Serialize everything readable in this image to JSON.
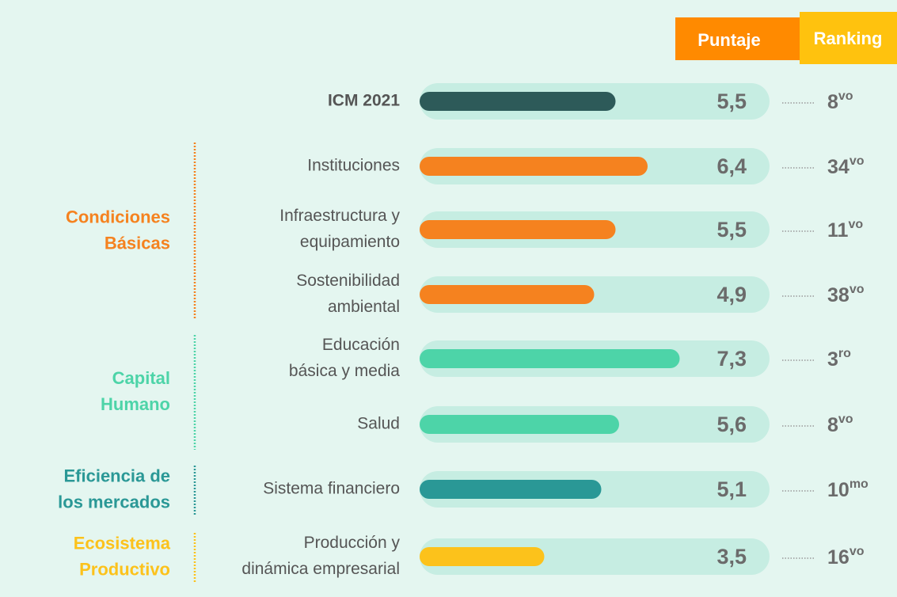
{
  "chart_data": {
    "type": "bar",
    "headers": {
      "score": "Puntaje",
      "rank": "Ranking"
    },
    "xlim": [
      0,
      10
    ],
    "total": {
      "label": [
        "ICM 2021"
      ],
      "value": 5.5,
      "value_label": "5,5",
      "rank": "8",
      "suffix": "vo",
      "color": "#2d5a59"
    },
    "groups": [
      {
        "name": [
          "Condiciones",
          "Básicas"
        ],
        "color": "#f5821f",
        "items": [
          {
            "label": [
              "Instituciones"
            ],
            "value": 6.4,
            "value_label": "6,4",
            "rank": "34",
            "suffix": "vo"
          },
          {
            "label": [
              "Infraestructura y",
              "equipamiento"
            ],
            "value": 5.5,
            "value_label": "5,5",
            "rank": "11",
            "suffix": "vo"
          },
          {
            "label": [
              "Sostenibilidad",
              "ambiental"
            ],
            "value": 4.9,
            "value_label": "4,9",
            "rank": "38",
            "suffix": "vo"
          }
        ]
      },
      {
        "name": [
          "Capital",
          "Humano"
        ],
        "color": "#4dd4a8",
        "items": [
          {
            "label": [
              "Educación",
              "básica y media"
            ],
            "value": 7.3,
            "value_label": "7,3",
            "rank": "3",
            "suffix": "ro"
          },
          {
            "label": [
              "Salud"
            ],
            "value": 5.6,
            "value_label": "5,6",
            "rank": "8",
            "suffix": "vo"
          }
        ]
      },
      {
        "name": [
          "Eficiencia de",
          "los mercados"
        ],
        "color": "#2a9896",
        "items": [
          {
            "label": [
              "Sistema financiero"
            ],
            "value": 5.1,
            "value_label": "5,1",
            "rank": "10",
            "suffix": "mo"
          }
        ]
      },
      {
        "name": [
          "Ecosistema",
          "Productivo"
        ],
        "color": "#fcc21b",
        "items": [
          {
            "label": [
              "Producción y",
              "dinámica empresarial"
            ],
            "value": 3.5,
            "value_label": "3,5",
            "rank": "16",
            "suffix": "vo"
          }
        ]
      }
    ]
  }
}
